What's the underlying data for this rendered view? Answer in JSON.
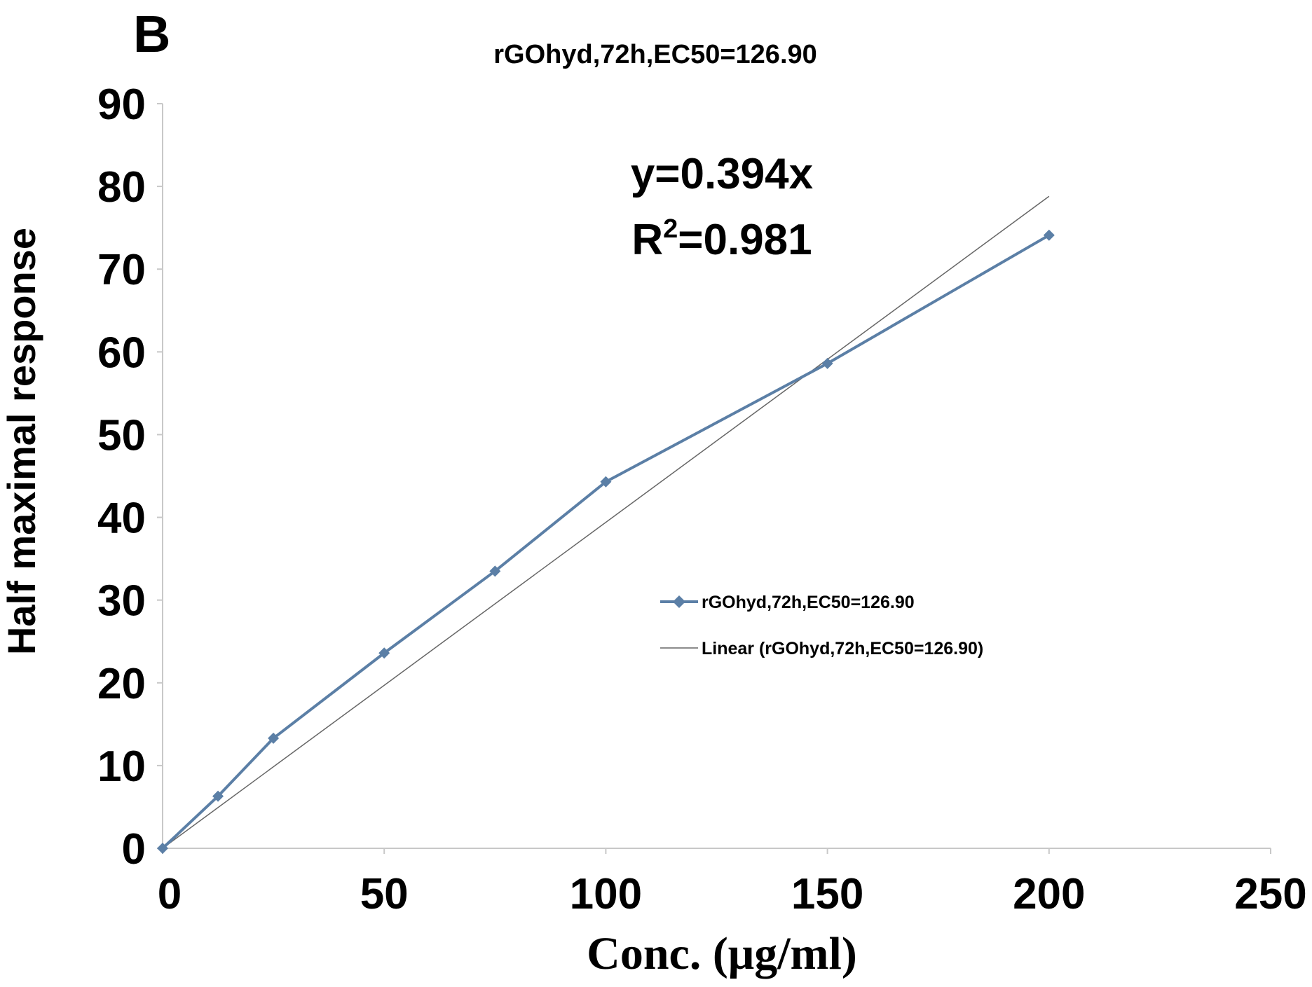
{
  "panel_label": "B",
  "chart_data": {
    "type": "line",
    "title": "rGOhyd,72h,EC50=126.90",
    "xlabel": "Conc. (μg/ml)",
    "ylabel": "Half maximal response",
    "xlim": [
      0,
      250
    ],
    "ylim": [
      0,
      90
    ],
    "x_ticks": [
      "0",
      "50",
      "100",
      "150",
      "200",
      "250"
    ],
    "y_ticks": [
      "0",
      "10",
      "20",
      "30",
      "40",
      "50",
      "60",
      "70",
      "80",
      "90"
    ],
    "grid": false,
    "legend_position": "center-right",
    "series": [
      {
        "name": "rGOhyd,72h,EC50=126.90",
        "color": "#5b7fa6",
        "marker": "diamond",
        "x": [
          0,
          12.5,
          25,
          50,
          75,
          100,
          150,
          200
        ],
        "y": [
          0,
          6.3,
          13.3,
          23.6,
          33.5,
          44.3,
          58.6,
          74.1
        ]
      }
    ],
    "trendline": {
      "name": "Linear (rGOhyd,72h,EC50=126.90)",
      "type": "linear",
      "slope": 0.394,
      "intercept": 0,
      "x_range": [
        0,
        200
      ],
      "color": "#666666"
    },
    "equation_text": "y=0.394x",
    "r_squared_prefix": "R",
    "r_squared_exponent": "2",
    "r_squared_value": "=0.981"
  }
}
